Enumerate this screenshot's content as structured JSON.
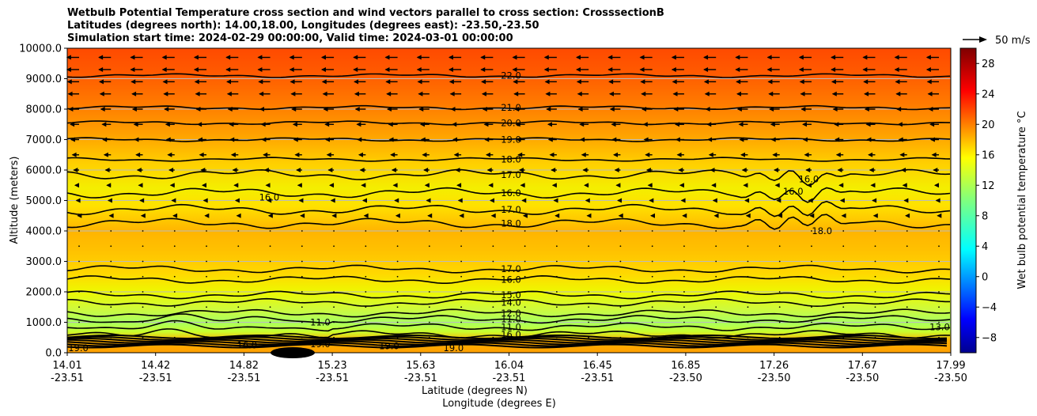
{
  "chart_data": {
    "type": "contourf",
    "title_lines": [
      "Wetbulb Potential Temperature cross section and wind vectors parallel to cross section: CrosssectionB",
      "Latitudes (degrees north): 14.00,18.00, Longitudes (degrees east): -23.50,-23.50",
      "Simulation start time: 2024-02-29 00:00:00, Valid time: 2024-03-01 00:00:00"
    ],
    "ylabel": "Altitude (meters)",
    "xlabel_lat": "Latitude (degrees N)",
    "xlabel_lon": "Longitude (degrees E)",
    "ylim": [
      0,
      10000
    ],
    "y_ticks": [
      0,
      1000,
      2000,
      3000,
      4000,
      5000,
      6000,
      7000,
      8000,
      9000,
      10000
    ],
    "y_tick_labels": [
      "0.0",
      "1000.0",
      "2000.0",
      "3000.0",
      "4000.0",
      "5000.0",
      "6000.0",
      "7000.0",
      "8000.0",
      "9000.0",
      "10000.0"
    ],
    "x_ticks": [
      {
        "lat": "14.01",
        "lon": "-23.51"
      },
      {
        "lat": "14.42",
        "lon": "-23.51"
      },
      {
        "lat": "14.82",
        "lon": "-23.51"
      },
      {
        "lat": "15.23",
        "lon": "-23.51"
      },
      {
        "lat": "15.63",
        "lon": "-23.51"
      },
      {
        "lat": "16.04",
        "lon": "-23.51"
      },
      {
        "lat": "16.45",
        "lon": "-23.51"
      },
      {
        "lat": "16.85",
        "lon": "-23.50"
      },
      {
        "lat": "17.26",
        "lon": "-23.50"
      },
      {
        "lat": "17.67",
        "lon": "-23.50"
      },
      {
        "lat": "17.99",
        "lon": "-23.50"
      }
    ],
    "colorbar": {
      "label": "Wet bulb potential temperature °C",
      "range": [
        -10,
        30
      ],
      "ticks": [
        -8,
        -4,
        0,
        4,
        8,
        12,
        16,
        20,
        24,
        28
      ],
      "colormap": "jet"
    },
    "contours": [
      {
        "level": 22,
        "label": "22.0",
        "altitude": 9100
      },
      {
        "level": 21,
        "label": "21.0",
        "altitude": 8050
      },
      {
        "level": 20,
        "label": "20.0",
        "altitude": 7550
      },
      {
        "level": 19,
        "label": "19.0",
        "altitude": 7000
      },
      {
        "level": 18,
        "label": "18.0",
        "altitude": 6350
      },
      {
        "level": 17,
        "label": "17.0",
        "altitude": 5850
      },
      {
        "level": 16,
        "label": "16.0",
        "altitude": 5250
      },
      {
        "level": 17,
        "label": "17.0",
        "altitude": 4700
      },
      {
        "level": 18,
        "label": "18.0",
        "altitude": 4250
      },
      {
        "level": 17,
        "label": "17.0",
        "altitude": 2750
      },
      {
        "level": 16,
        "label": "16.0",
        "altitude": 2400
      },
      {
        "level": 15,
        "label": "15.0",
        "altitude": 1900
      },
      {
        "level": 14,
        "label": "14.0",
        "altitude": 1650
      },
      {
        "level": 12,
        "label": "12.0",
        "altitude": 1300
      },
      {
        "level": 11,
        "label": "11.0",
        "altitude": 1100
      },
      {
        "level": 11,
        "label": "11.0",
        "altitude": 850
      },
      {
        "level": 16,
        "label": "16.0",
        "altitude": 600
      }
    ],
    "extra_labels": [
      {
        "text": "16.0",
        "lat": 14.92,
        "altitude": 5100
      },
      {
        "text": "16.0",
        "lat": 17.35,
        "altitude": 5700
      },
      {
        "text": "16.0",
        "lat": 17.28,
        "altitude": 5300
      },
      {
        "text": "18.0",
        "lat": 17.41,
        "altitude": 4000
      },
      {
        "text": "11.0",
        "lat": 15.15,
        "altitude": 1000
      },
      {
        "text": "13.0",
        "lat": 17.94,
        "altitude": 850
      },
      {
        "text": "19.0",
        "lat": 14.06,
        "altitude": 150
      },
      {
        "text": "19.0",
        "lat": 15.15,
        "altitude": 280
      },
      {
        "text": "19.0",
        "lat": 15.46,
        "altitude": 220
      },
      {
        "text": "19.0",
        "lat": 15.75,
        "altitude": 150
      },
      {
        "text": "16.0",
        "lat": 14.82,
        "altitude": 250
      }
    ],
    "wind": {
      "reference_speed_ms": 50,
      "reference_label": "50 m/s",
      "levels_m": [
        9700,
        9300,
        8900,
        8500,
        8000,
        7500,
        7000,
        6500,
        6000,
        5500,
        5000,
        4500,
        4000,
        3500,
        3000,
        2500,
        2000,
        1500,
        1000,
        500
      ],
      "speeds_ms": [
        -18,
        -18,
        -17,
        -16,
        -15,
        -13,
        -12,
        -10,
        -8,
        -6,
        -4,
        -2,
        -1,
        -1,
        -0.5,
        -0.5,
        -0.5,
        -0.5,
        0,
        0
      ]
    }
  }
}
